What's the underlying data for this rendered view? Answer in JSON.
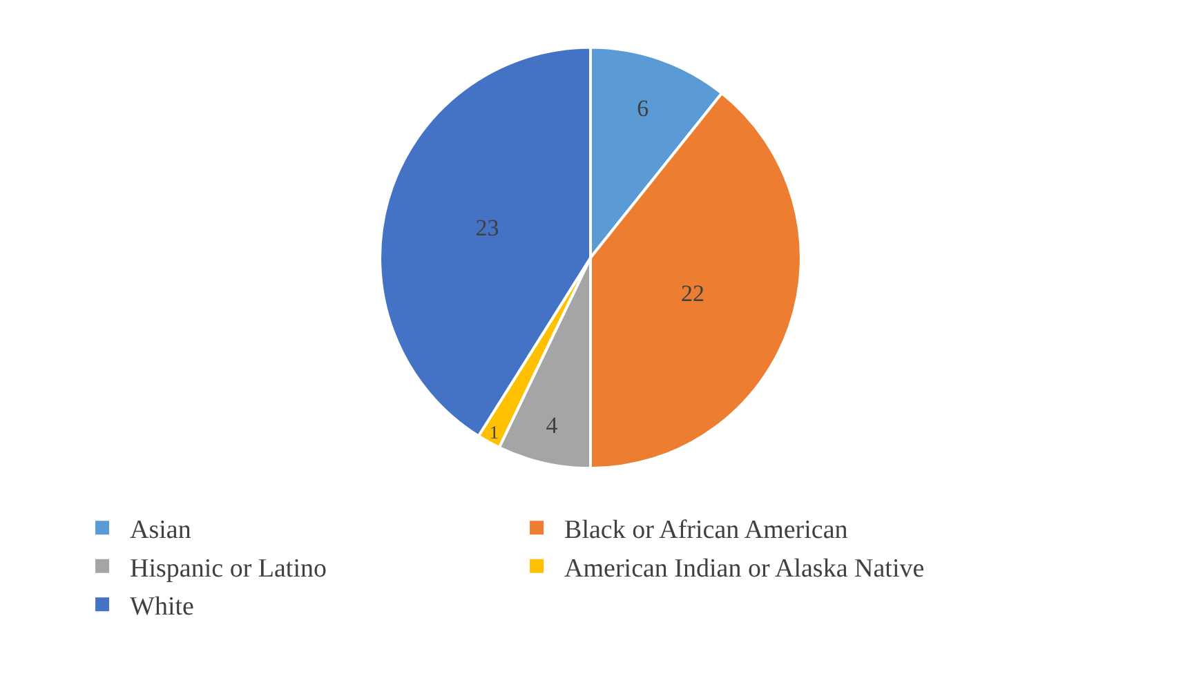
{
  "chart_data": {
    "type": "pie",
    "categories": [
      "Asian",
      "Black or African American",
      "Hispanic or Latino",
      "American Indian or Alaska Native",
      "White"
    ],
    "values": [
      6,
      22,
      4,
      1,
      23
    ],
    "colors": [
      "#5b9bd5",
      "#ed7d31",
      "#a5a5a5",
      "#ffc000",
      "#4472c4"
    ],
    "data_labels": true,
    "legend": "bottom"
  }
}
